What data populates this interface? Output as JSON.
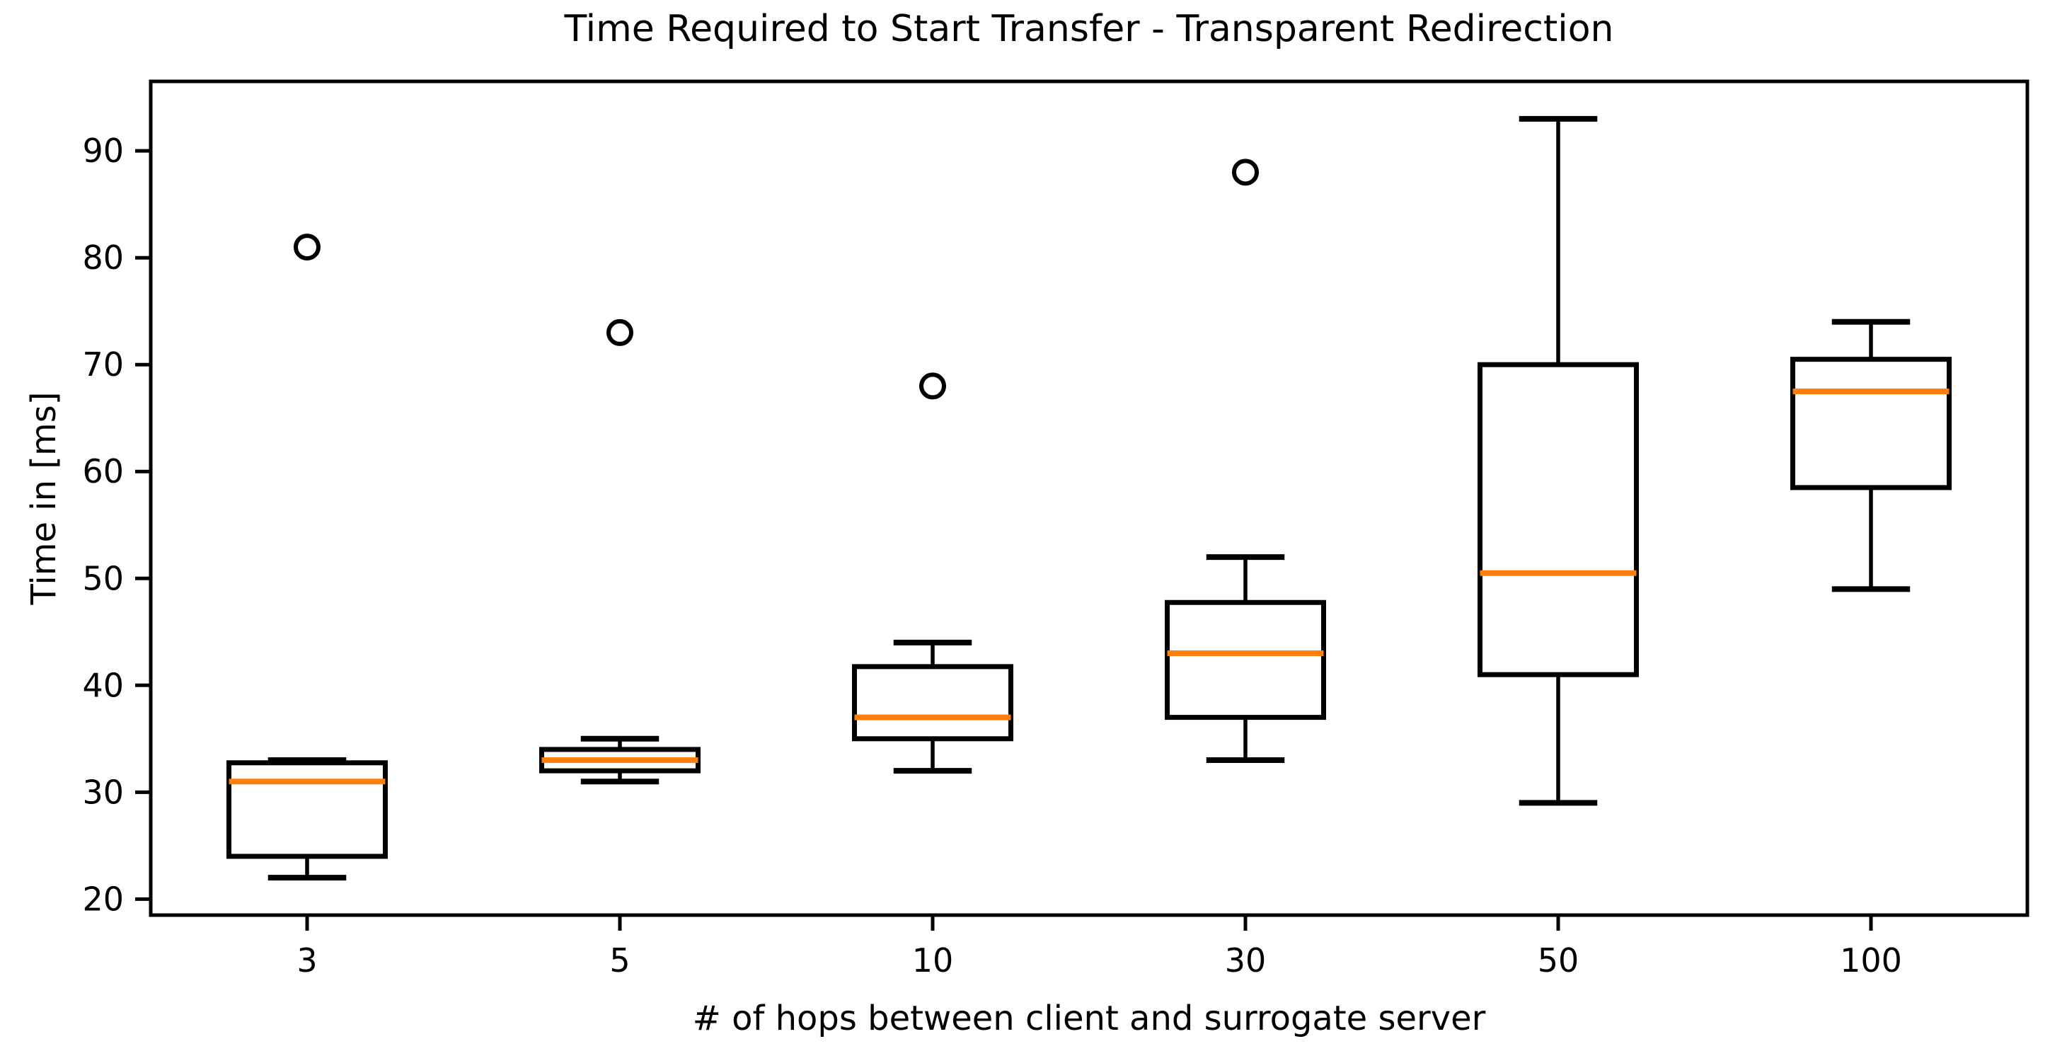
{
  "chart_data": {
    "type": "boxplot",
    "title": "Time Required to Start Transfer - Transparent Redirection",
    "xlabel": "# of hops between client and surrogate server",
    "ylabel": "Time in [ms]",
    "categories": [
      "3",
      "5",
      "10",
      "30",
      "50",
      "100"
    ],
    "yticks": [
      20,
      30,
      40,
      50,
      60,
      70,
      80,
      90
    ],
    "ylim": [
      18.5,
      96.5
    ],
    "grid": false,
    "legend_position": "none",
    "boxes": [
      {
        "category": "3",
        "whisker_low": 22,
        "q1": 24,
        "median": 31,
        "q3": 32.75,
        "whisker_high": 33,
        "outliers": [
          81
        ]
      },
      {
        "category": "5",
        "whisker_low": 31,
        "q1": 32,
        "median": 33,
        "q3": 34,
        "whisker_high": 35,
        "outliers": [
          73
        ]
      },
      {
        "category": "10",
        "whisker_low": 32,
        "q1": 35,
        "median": 37,
        "q3": 41.75,
        "whisker_high": 44,
        "outliers": [
          68
        ]
      },
      {
        "category": "30",
        "whisker_low": 33,
        "q1": 37,
        "median": 43,
        "q3": 47.75,
        "whisker_high": 52,
        "outliers": [
          88
        ]
      },
      {
        "category": "50",
        "whisker_low": 29,
        "q1": 41,
        "median": 50.5,
        "q3": 70,
        "whisker_high": 93,
        "outliers": []
      },
      {
        "category": "100",
        "whisker_low": 49,
        "q1": 58.5,
        "median": 67.5,
        "q3": 70.5,
        "whisker_high": 74,
        "outliers": []
      }
    ],
    "colors": {
      "box_stroke": "#000000",
      "median": "#ff7f0e",
      "background": "#ffffff"
    }
  }
}
